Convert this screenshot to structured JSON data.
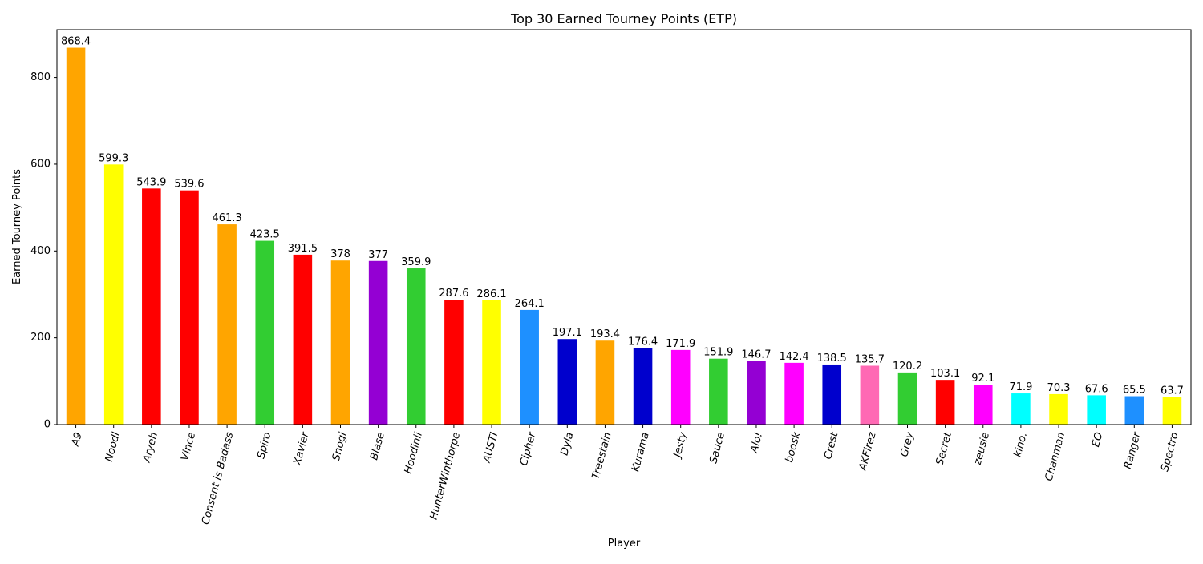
{
  "chart_data": {
    "type": "bar",
    "title": "Top 30 Earned Tourney Points (ETP)",
    "xlabel": "Player",
    "ylabel": "Earned Tourney Points",
    "ylim": [
      0,
      910
    ],
    "yticks": [
      0,
      200,
      400,
      600,
      800
    ],
    "grid": false,
    "legend": "none",
    "categories": [
      "A9",
      "Noodl",
      "Aryeh",
      "Vince",
      "Consent is Badass",
      "Spiro",
      "Xavier",
      "Snogi",
      "Blase",
      "Hoodinii",
      "HunterWinthorpe",
      "AUSTI",
      "Cipher",
      "Dyla",
      "Treestain",
      "Kurama",
      "Jesty",
      "Sauce",
      "Alo!",
      "boosk",
      "Crest",
      "AKFirez",
      "Grey",
      "Secret",
      "zeusie",
      "kino.",
      "Chanman",
      "EO",
      "Ranger",
      "Spectro"
    ],
    "values": [
      868.4,
      599.3,
      543.9,
      539.6,
      461.3,
      423.5,
      391.5,
      378,
      377,
      359.9,
      287.6,
      286.1,
      264.1,
      197.1,
      193.4,
      176.4,
      171.9,
      151.9,
      146.7,
      142.4,
      138.5,
      135.7,
      120.2,
      103.1,
      92.1,
      71.9,
      70.3,
      67.6,
      65.5,
      63.7
    ],
    "colors": [
      "#FFA500",
      "#FFFF00",
      "#FF0000",
      "#FF0000",
      "#FFA500",
      "#32CD32",
      "#FF0000",
      "#FFA500",
      "#9400D3",
      "#32CD32",
      "#FF0000",
      "#FFFF00",
      "#1E90FF",
      "#0000CD",
      "#FFA500",
      "#0000CD",
      "#FF00FF",
      "#32CD32",
      "#9400D3",
      "#FF00FF",
      "#0000CD",
      "#FF69B4",
      "#32CD32",
      "#FF0000",
      "#FF00FF",
      "#00FFFF",
      "#FFFF00",
      "#00FFFF",
      "#1E90FF",
      "#FFFF00"
    ]
  }
}
